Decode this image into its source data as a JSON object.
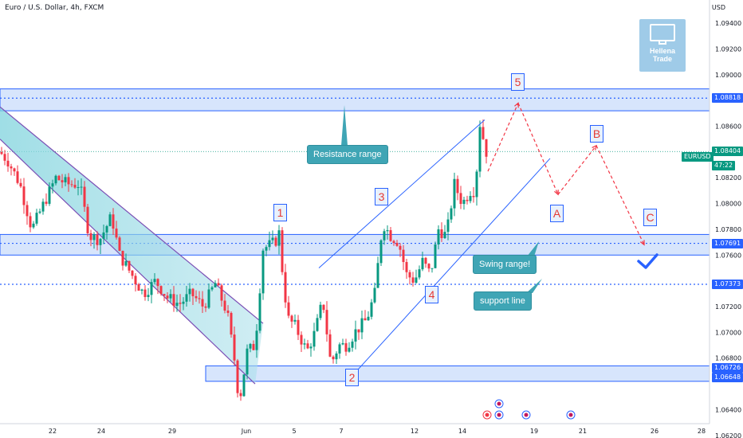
{
  "header": {
    "title": "Euro / U.S. Dollar, 4h, FXCM",
    "currency": "USD",
    "symbol": "EURUSD",
    "countdown": "47:22"
  },
  "logo": {
    "line1": "Hellena",
    "line2": "Trade"
  },
  "price_axis": {
    "ticks": [
      "1.09400",
      "1.09200",
      "1.09000",
      "1.08600",
      "1.08200",
      "1.08000",
      "1.07800",
      "1.07600",
      "1.07200",
      "1.07000",
      "1.06800",
      "1.06400",
      "1.06200"
    ],
    "tags": [
      {
        "label": "1.08818",
        "value": 1.08818,
        "style": "blue"
      },
      {
        "label": "1.08404",
        "value": 1.08404,
        "style": "green"
      },
      {
        "label": "1.07691",
        "value": 1.07691,
        "style": "blue"
      },
      {
        "label": "1.07373",
        "value": 1.07373,
        "style": "blue"
      },
      {
        "label": "1.06726",
        "value": 1.06726,
        "style": "blue"
      },
      {
        "label": "1.06648",
        "value": 1.06648,
        "style": "blue"
      }
    ]
  },
  "time_axis": {
    "labels": [
      "22",
      "24",
      "29",
      "Jun",
      "5",
      "7",
      "12",
      "14",
      "19",
      "21",
      "26",
      "28"
    ]
  },
  "callouts": {
    "resistance": "Resistance range",
    "swing": "Swing range!",
    "support": "support line"
  },
  "wave_labels": {
    "w1": "1",
    "w2": "2",
    "w3": "3",
    "w4": "4",
    "w5": "5",
    "a": "A",
    "b": "B",
    "c": "C"
  },
  "colors": {
    "up": "#089981",
    "down": "#f23645",
    "zone": "#2962ff",
    "channel": "#2962ff",
    "projection": "#f23645",
    "callout": "#3fa5b5"
  },
  "chart_data": {
    "type": "candlestick",
    "title": "Euro / U.S. Dollar, 4h, FXCM",
    "ylim": [
      1.0618,
      1.0958
    ],
    "zones": [
      {
        "name": "Resistance range",
        "from": 1.0872,
        "to": 1.0889
      },
      {
        "name": "Swing range",
        "from": 1.076,
        "to": 1.0776
      },
      {
        "name": "support zone",
        "from": 1.0662,
        "to": 1.0674
      }
    ],
    "levels": [
      1.08818,
      1.07691,
      1.07373,
      1.06726,
      1.06648
    ],
    "last_price": 1.08404,
    "close_path": [
      [
        0,
        1.084
      ],
      [
        10,
        1.0833
      ],
      [
        25,
        1.0815
      ],
      [
        40,
        1.078
      ],
      [
        55,
        1.08
      ],
      [
        70,
        1.082
      ],
      [
        85,
        1.0815
      ],
      [
        100,
        1.0815
      ],
      [
        112,
        1.0775
      ],
      [
        125,
        1.0772
      ],
      [
        140,
        1.079
      ],
      [
        150,
        1.076
      ],
      [
        165,
        1.0745
      ],
      [
        180,
        1.073
      ],
      [
        195,
        1.074
      ],
      [
        210,
        1.0727
      ],
      [
        225,
        1.0722
      ],
      [
        240,
        1.073
      ],
      [
        255,
        1.072
      ],
      [
        270,
        1.0738
      ],
      [
        285,
        1.0715
      ],
      [
        295,
        1.0675
      ],
      [
        300,
        1.0645
      ],
      [
        310,
        1.0685
      ],
      [
        320,
        1.069
      ],
      [
        330,
        1.0765
      ],
      [
        345,
        1.077
      ],
      [
        350,
        1.0777
      ],
      [
        356,
        1.0735
      ],
      [
        362,
        1.071
      ],
      [
        370,
        1.0705
      ],
      [
        385,
        1.0685
      ],
      [
        395,
        1.07
      ],
      [
        405,
        1.0725
      ],
      [
        415,
        1.0675
      ],
      [
        425,
        1.069
      ],
      [
        435,
        1.069
      ],
      [
        445,
        1.07
      ],
      [
        460,
        1.071
      ],
      [
        470,
        1.073
      ],
      [
        480,
        1.0785
      ],
      [
        490,
        1.0775
      ],
      [
        500,
        1.077
      ],
      [
        510,
        1.0745
      ],
      [
        520,
        1.074
      ],
      [
        530,
        1.0755
      ],
      [
        540,
        1.0745
      ],
      [
        550,
        1.078
      ],
      [
        560,
        1.0775
      ],
      [
        570,
        1.0815
      ],
      [
        580,
        1.08
      ],
      [
        590,
        1.081
      ],
      [
        596,
        1.081
      ],
      [
        602,
        1.0862
      ],
      [
        610,
        1.084
      ]
    ],
    "wedge": {
      "upper": [
        [
          0,
          1.0875
        ],
        [
          330,
          1.0707
        ]
      ],
      "lower": [
        [
          0,
          1.085
        ],
        [
          320,
          1.066
        ]
      ]
    },
    "channel": {
      "upper": [
        [
          400,
          1.075
        ],
        [
          608,
          1.0865
        ]
      ],
      "lower": [
        [
          440,
          1.0665
        ],
        [
          690,
          1.0835
        ]
      ]
    },
    "projection": [
      [
        612,
        1.0825
      ],
      [
        650,
        1.0878
      ],
      [
        700,
        1.0807
      ],
      [
        748,
        1.0845
      ],
      [
        808,
        1.0768
      ]
    ],
    "wave_points": [
      {
        "label": "1",
        "x": 350,
        "y": 1.0777
      },
      {
        "label": "2",
        "x": 440,
        "y": 1.0662
      },
      {
        "label": "3",
        "x": 480,
        "y": 1.0787
      },
      {
        "label": "4",
        "x": 540,
        "y": 1.074
      },
      {
        "label": "5",
        "x": 650,
        "y": 1.0888
      },
      {
        "label": "A",
        "x": 700,
        "y": 1.08
      },
      {
        "label": "B",
        "x": 748,
        "y": 1.0855
      },
      {
        "label": "C",
        "x": 815,
        "y": 1.078
      }
    ]
  }
}
